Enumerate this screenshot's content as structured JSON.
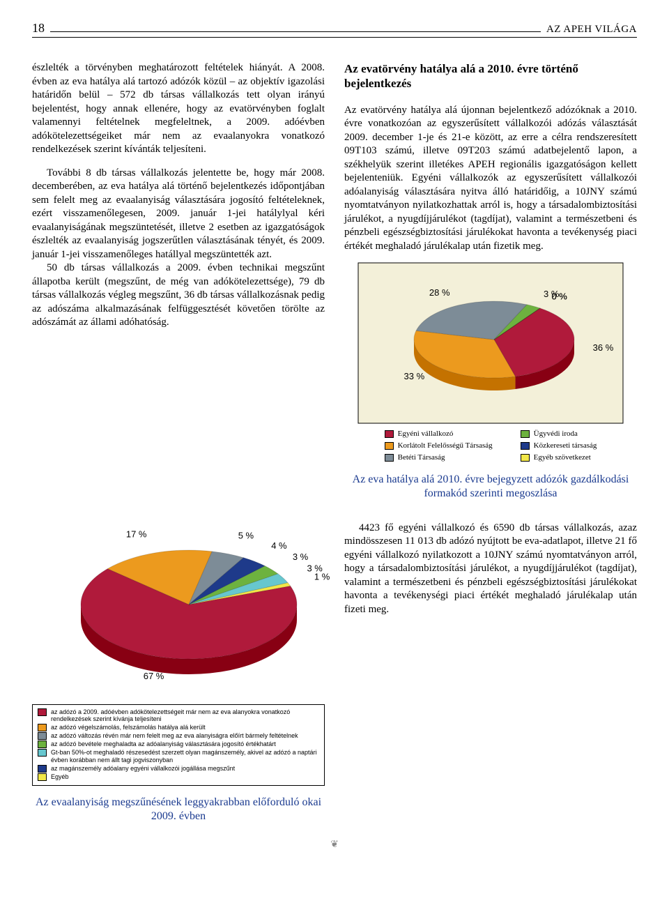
{
  "header": {
    "page_number": "18",
    "journal": "AZ APEH VILÁGA"
  },
  "left_column": {
    "p1": "észlelték a törvényben meghatározott feltételek hiányát. A 2008. évben az eva hatálya alá tartozó adózók közül – az objektív igazolási határidőn belül – 572 db társas vállalkozás tett olyan irányú bejelentést, hogy annak ellenére, hogy az evatörvényben foglalt valamennyi feltételnek megfeleltnek, a 2009. adóévben adókötelezettségeiket már nem az evaalanyokra vonatkozó rendelkezések szerint kívánták teljesíteni.",
    "p2": "További 8 db társas vállalkozás jelentette be, hogy már 2008. decemberében, az eva hatálya alá történő bejelentkezés időpontjában sem felelt meg az evaalanyiság választására jogosító feltételeknek, ezért visszamenőlegesen, 2009. január 1-jei hatálylyal kéri evaalanyiságának megszüntetését, illetve 2 esetben az igazgatóságok észlelték az evaalanyiság jogszerűtlen választásának tényét, és 2009. január 1-jei visszamenőleges hatállyal megszüntették azt.",
    "p3": "50 db társas vállalkozás a 2009. évben technikai megszűnt állapotba került (megszűnt, de még van adókötelezettsége), 79 db társas vállalkozás végleg megszűnt, 36 db társas vállalkozásnak pedig az adószáma alkalmazásának felfüggesztését követően törölte az adószámát az állami adóhatóság."
  },
  "right_column": {
    "title": "Az evatörvény hatálya alá a 2010. évre történő bejelentkezés",
    "p1": "Az evatörvény hatálya alá újonnan bejelentkező adózóknak a 2010. évre vonatkozóan az egyszerűsített vállalkozói adózás választását 2009. december 1-je és 21-e között, az erre a célra rendszeresített 09T103 számú, illetve 09T203 számú adatbejelentő lapon, a székhelyük szerint illetékes APEH regionális igazgatóságon kellett bejelenteniük. Egyéni vállalkozók az egyszerűsített vállalkozói adóalanyiság választására nyitva álló határidőig, a 10JNY számú nyomtatványon nyilatkozhattak arról is, hogy a társadalombiztosítási járulékot, a nyugdíjjárulékot (tagdíjat), valamint a természetbeni és pénzbeli egészségbiztosítási járulékokat havonta a tevékenység piaci értékét meghaladó járulékalap után fizetik meg."
  },
  "pie_small": {
    "type": "pie",
    "background": "#f3f0d9",
    "border_color": "#000000",
    "slices": [
      {
        "label": "36 %",
        "value": 36,
        "color": "#b01a3b"
      },
      {
        "label": "33 %",
        "value": 33,
        "color": "#ec9a1e"
      },
      {
        "label": "28 %",
        "value": 28,
        "color": "#7d8c97"
      },
      {
        "label": "3 %",
        "value": 3,
        "color": "#6db23f"
      },
      {
        "label": "0 %",
        "value": 0,
        "color": "#1e3a8a"
      },
      {
        "label": "0 %",
        "value": 0,
        "color": "#f2e748"
      }
    ],
    "legend": [
      {
        "color": "#b01a3b",
        "text": "Egyéni vállalkozó"
      },
      {
        "color": "#ec9a1e",
        "text": "Korlátolt Felelősségű Társaság"
      },
      {
        "color": "#7d8c97",
        "text": "Betéti Társaság"
      },
      {
        "color": "#6db23f",
        "text": "Ügyvédi iroda"
      },
      {
        "color": "#1e3a8a",
        "text": "Közkereseti társaság"
      },
      {
        "color": "#f2e748",
        "text": "Egyéb szövetkezet"
      }
    ],
    "caption": "Az eva hatálya alá 2010. évre bejegyzett adózók gazdálkodási formakód szerinti megoszlása"
  },
  "pie_large": {
    "type": "pie",
    "background": "#ffffff",
    "slices": [
      {
        "label": "67 %",
        "value": 67,
        "color": "#b01a3b"
      },
      {
        "label": "17 %",
        "value": 17,
        "color": "#ec9a1e"
      },
      {
        "label": "5 %",
        "value": 5,
        "color": "#7d8c97"
      },
      {
        "label": "4 %",
        "value": 4,
        "color": "#1e3a8a"
      },
      {
        "label": "3 %",
        "value": 3,
        "color": "#6db23f"
      },
      {
        "label": "3 %",
        "value": 3,
        "color": "#67c7cf"
      },
      {
        "label": "1 %",
        "value": 1,
        "color": "#f2e748"
      }
    ],
    "legend": [
      {
        "color": "#b01a3b",
        "text": "az adózó a 2009. adóévben adókötelezettségeit már nem az eva alanyokra vonatkozó rendelkezések szerint kívánja teljesíteni"
      },
      {
        "color": "#ec9a1e",
        "text": "az adózó végelszámolás, felszámolás hatálya alá került"
      },
      {
        "color": "#7d8c97",
        "text": "az adózó változás révén már nem felelt meg az eva alanyiságra előírt bármely feltételnek"
      },
      {
        "color": "#6db23f",
        "text": "az adózó bevétele meghaladta az adóalanyiság választására jogosító értékhatárt"
      },
      {
        "color": "#67c7cf",
        "text": "Gt-ban 50%-ot meghaladó részesedést szerzett olyan magánszemély, akivel az adózó a naptári évben korábban nem állt tagi jogviszonyban"
      },
      {
        "color": "#1e3a8a",
        "text": "az magánszemély adóalany egyéni vállalkozói jogállása megszűnt"
      },
      {
        "color": "#f2e748",
        "text": "Egyéb"
      }
    ],
    "caption": "Az evaalanyiság megszűnésének leggyakrabban előforduló okai 2009. évben"
  },
  "bottom_right": {
    "p1": "4423 fő egyéni vállalkozó és 6590 db társas vállalkozás, azaz mindösszesen 11 013 db adózó nyújtott be eva-adatlapot, illetve 21 fő egyéni vállalkozó nyilatkozott a 10JNY számú nyomtatványon arról, hogy a társadalombiztosítási járulékot, a nyugdíjjárulékot (tagdíjat), valamint a természetbeni és pénzbeli egészségbiztosítási járulékokat havonta a tevékenységi piaci értékét meghaladó járulékalap után fizeti meg."
  }
}
